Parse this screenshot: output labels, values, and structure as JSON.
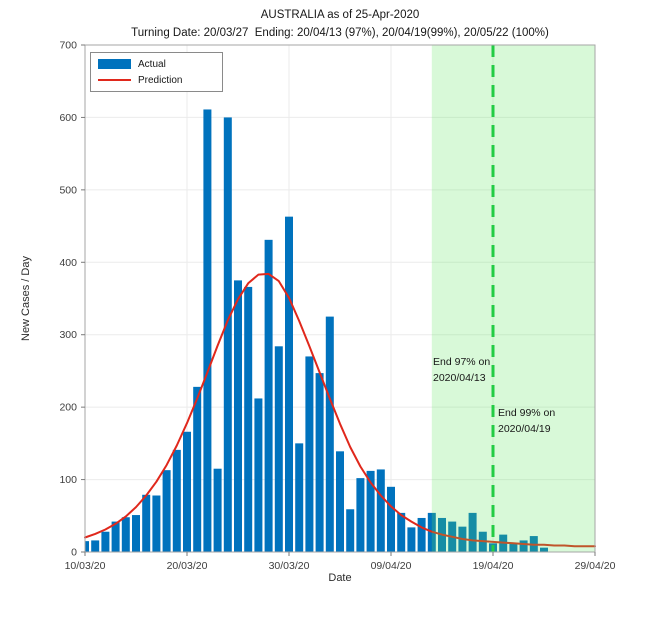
{
  "chart_data": {
    "type": "bar",
    "title": "AUSTRALIA as of 25-Apr-2020",
    "subtitle": "Turning Date: 20/03/27  Ending: 20/04/13 (97%), 20/04/19(99%), 20/05/22 (100%)",
    "xlabel": "Date",
    "ylabel": "New Cases / Day",
    "ylim": [
      0,
      700
    ],
    "y_ticks": [
      0,
      100,
      200,
      300,
      400,
      500,
      600,
      700
    ],
    "x_ticks": [
      {
        "day": 0,
        "label": "10/03/20"
      },
      {
        "day": 10,
        "label": "20/03/20"
      },
      {
        "day": 20,
        "label": "30/03/20"
      },
      {
        "day": 30,
        "label": "09/04/20"
      },
      {
        "day": 40,
        "label": "19/04/20"
      },
      {
        "day": 50,
        "label": "29/04/20"
      }
    ],
    "x_range_days": [
      0,
      50
    ],
    "grid": true,
    "legend": {
      "position": "top-left",
      "entries": [
        {
          "label": "Actual",
          "type": "bar",
          "color": "#0072BD"
        },
        {
          "label": "Prediction",
          "type": "line",
          "color": "#E0281C"
        }
      ]
    },
    "bars": {
      "name": "Actual",
      "color": "#0072BD",
      "dates": [
        "10/03/20",
        "11/03/20",
        "12/03/20",
        "13/03/20",
        "14/03/20",
        "15/03/20",
        "16/03/20",
        "17/03/20",
        "18/03/20",
        "19/03/20",
        "20/03/20",
        "21/03/20",
        "22/03/20",
        "23/03/20",
        "24/03/20",
        "25/03/20",
        "26/03/20",
        "27/03/20",
        "28/03/20",
        "29/03/20",
        "30/03/20",
        "31/03/20",
        "01/04/20",
        "02/04/20",
        "03/04/20",
        "04/04/20",
        "05/04/20",
        "06/04/20",
        "07/04/20",
        "08/04/20",
        "09/04/20",
        "10/04/20",
        "11/04/20",
        "12/04/20",
        "13/04/20",
        "14/04/20",
        "15/04/20",
        "16/04/20",
        "17/04/20",
        "18/04/20",
        "19/04/20",
        "20/04/20",
        "21/04/20",
        "22/04/20",
        "23/04/20",
        "24/04/20"
      ],
      "values": [
        15,
        16,
        28,
        42,
        48,
        51,
        79,
        78,
        113,
        141,
        166,
        228,
        611,
        115,
        600,
        375,
        366,
        212,
        431,
        284,
        463,
        150,
        270,
        247,
        325,
        139,
        59,
        102,
        112,
        114,
        90,
        54,
        34,
        47,
        54,
        47,
        42,
        35,
        54,
        28,
        12,
        24,
        12,
        16,
        22,
        6
      ]
    },
    "prediction": {
      "name": "Prediction",
      "color": "#E0281C",
      "start_day": 0,
      "peak_value": 384,
      "peak_date": "28/03/20",
      "daily_values": [
        20,
        25,
        31,
        39,
        49,
        62,
        78,
        97,
        120,
        147,
        178,
        212,
        248,
        285,
        320,
        349,
        371,
        383,
        384,
        374,
        351,
        319,
        284,
        248,
        212,
        177,
        145,
        118,
        96,
        78,
        63,
        51,
        42,
        34,
        28,
        24,
        21,
        18,
        16,
        15,
        14,
        13,
        12,
        11,
        10,
        10,
        9,
        9,
        8,
        8,
        8
      ]
    },
    "shaded_region": {
      "start_day": 34,
      "end_day": 50,
      "start_date": "2020/04/13",
      "color": "#5CE65C",
      "opacity": 0.24
    },
    "dashed_line": {
      "day": 40,
      "date": "2020/04/19",
      "color": "#22CC44"
    },
    "annotations": [
      {
        "lines": [
          "End 97% on",
          "2020/04/13"
        ],
        "date": "2020/04/13",
        "side": "left-of-region-start"
      },
      {
        "lines": [
          "End 99% on",
          "2020/04/19"
        ],
        "date": "2020/04/19",
        "side": "right-of-dashed-line"
      }
    ],
    "axis_colors": {
      "box": "#a6a6a6",
      "tick": "#7a7a7a",
      "tick_label": "#3d3d3d",
      "grid": "#ebebeb"
    }
  }
}
